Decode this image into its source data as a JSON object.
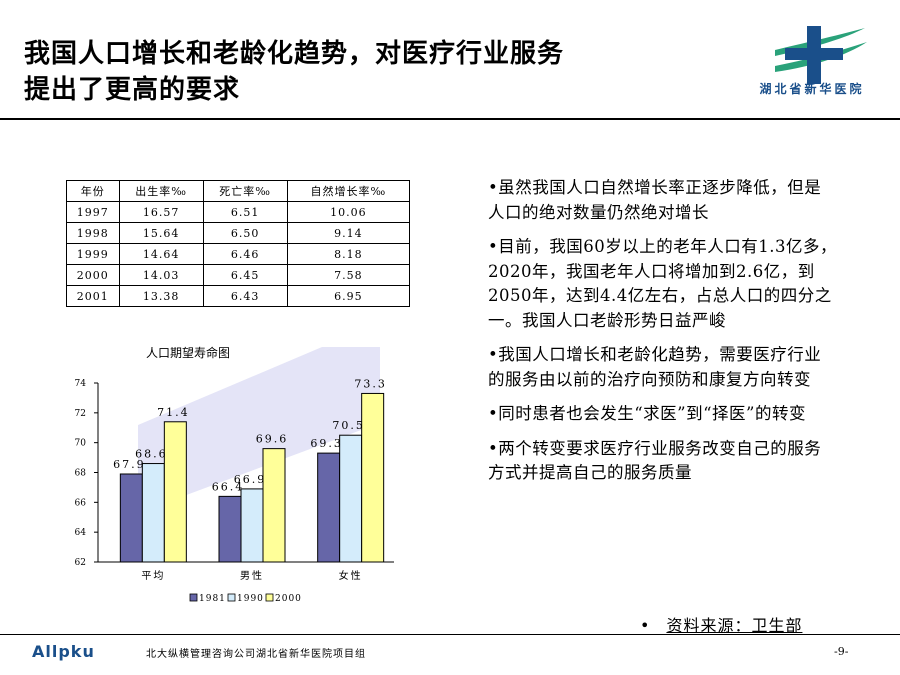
{
  "slide": {
    "title_line1": "我国人口增长和老龄化趋势，对医疗行业服务",
    "title_line2": "提出了更高的要求",
    "logo_text": "湖北省新华医院",
    "source_label": "资料来源：卫生部",
    "footer_company": "北大纵横管理咨询公司湖北省新华医院项目组",
    "footer_logo_text": "Allpku",
    "page_number": "-9-"
  },
  "table": {
    "headers": [
      "年份",
      "出生率‰",
      "死亡率‰",
      "自然增长率‰"
    ],
    "rows": [
      [
        "1997",
        "16.57",
        "6.51",
        "10.06"
      ],
      [
        "1998",
        "15.64",
        "6.50",
        "9.14"
      ],
      [
        "1999",
        "14.64",
        "6.46",
        "8.18"
      ],
      [
        "2000",
        "14.03",
        "6.45",
        "7.58"
      ],
      [
        "2001",
        "13.38",
        "6.43",
        "6.95"
      ]
    ]
  },
  "bullets": [
    "•虽然我国人口自然增长率正逐步降低，但是人口的绝对数量仍然绝对增长",
    "•目前，我国60岁以上的老年人口有1.3亿多，2020年，我国老年人口将增加到2.6亿，到2050年，达到4.4亿左右，占总人口的四分之一。我国人口老龄形势日益严峻",
    "•我国人口增长和老龄化趋势，需要医疗行业的服务由以前的治疗向预防和康复方向转变",
    "•同时患者也会发生“求医”到“择医”的转变",
    "•两个转变要求医疗行业服务改变自己的服务方式并提高自己的服务质量"
  ],
  "colors": {
    "bar_1981": "#6666a8",
    "bar_1990": "#d4ecfb",
    "bar_2000": "#ffff99",
    "arrow_bg": "#e4e4f7",
    "logo_blue": "#1a4f8a",
    "logo_green": "#2aa27a"
  },
  "chart_data": {
    "type": "bar",
    "title": "人口期望寿命图",
    "categories": [
      "平均",
      "男性",
      "女性"
    ],
    "series": [
      {
        "name": "1981",
        "values": [
          67.9,
          66.4,
          69.3
        ]
      },
      {
        "name": "1990",
        "values": [
          68.6,
          66.9,
          70.5
        ]
      },
      {
        "name": "2000",
        "values": [
          71.4,
          69.6,
          73.3
        ]
      }
    ],
    "data_labels": [
      [
        "67.9",
        "66.4",
        "69.3"
      ],
      [
        "68.6",
        "66.9",
        "70.5"
      ],
      [
        "71.4",
        "69.6",
        "73.3"
      ]
    ],
    "ylim": [
      62,
      74
    ],
    "yticks": [
      "62",
      "64",
      "66",
      "68",
      "70",
      "72",
      "74"
    ],
    "grid": false,
    "legend_position": "bottom"
  }
}
